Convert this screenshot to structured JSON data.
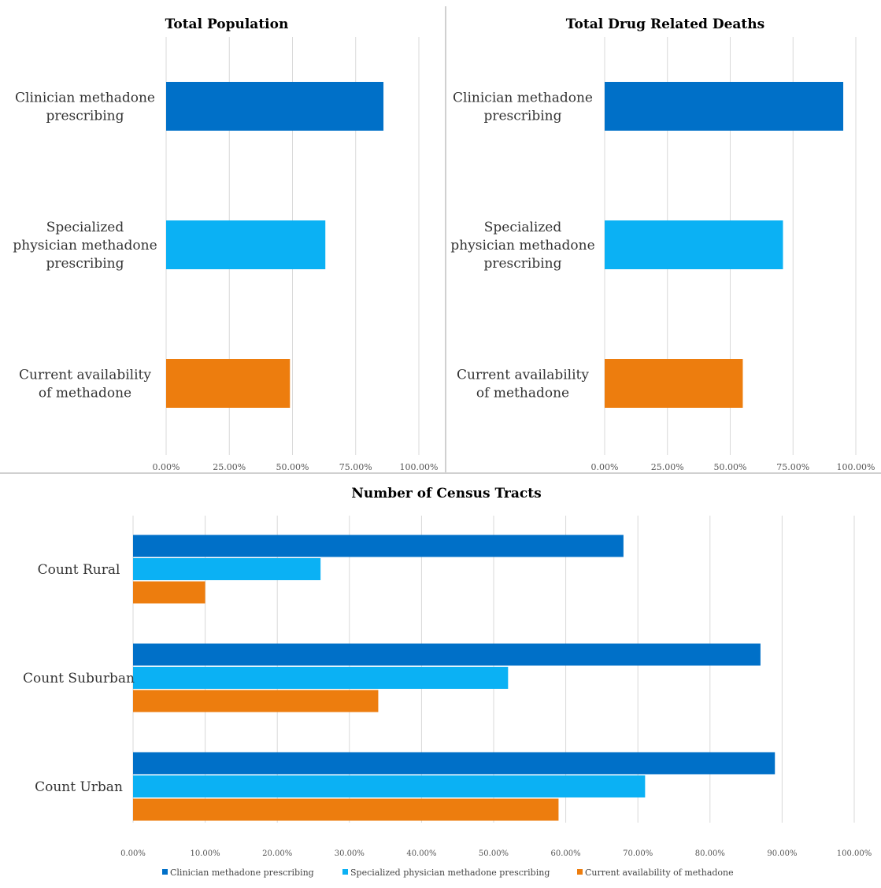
{
  "colors": {
    "clinician": "#0070C8",
    "specialized": "#0BB1F4",
    "current": "#ED7D0E",
    "grid": "#D9D9D9",
    "divider": "#D0D0D0"
  },
  "chart_data": [
    {
      "type": "bar",
      "orientation": "horizontal",
      "title": "Total Population",
      "categories": [
        "Clinician methadone prescribing",
        "Specialized physician methadone prescribing",
        "Current availability of methadone"
      ],
      "values": [
        0.86,
        0.63,
        0.49
      ],
      "xlim": [
        0,
        1
      ],
      "ticks": [
        "0.00%",
        "25.00%",
        "50.00%",
        "75.00%",
        "100.00%"
      ],
      "grid": true
    },
    {
      "type": "bar",
      "orientation": "horizontal",
      "title": "Total Drug Related Deaths",
      "categories": [
        "Clinician methadone prescribing",
        "Specialized physician methadone prescribing",
        "Current availability of methadone"
      ],
      "values": [
        0.95,
        0.71,
        0.55
      ],
      "xlim": [
        0,
        1
      ],
      "ticks": [
        "0.00%",
        "25.00%",
        "50.00%",
        "75.00%",
        "100.00%"
      ],
      "grid": true
    },
    {
      "type": "bar",
      "orientation": "horizontal",
      "title": "Number of Census Tracts",
      "categories": [
        "Count Rural",
        "Count Suburban",
        "Count Urban"
      ],
      "series": [
        {
          "name": "Clinician methadone prescribing",
          "values": [
            0.68,
            0.87,
            0.89
          ]
        },
        {
          "name": "Specialized physician methadone prescribing",
          "values": [
            0.26,
            0.52,
            0.71
          ]
        },
        {
          "name": "Current availability of  methadone",
          "values": [
            0.1,
            0.34,
            0.59
          ]
        }
      ],
      "xlim": [
        0,
        1
      ],
      "ticks": [
        "0.00%",
        "10.00%",
        "20.00%",
        "30.00%",
        "40.00%",
        "50.00%",
        "60.00%",
        "70.00%",
        "80.00%",
        "90.00%",
        "100.00%"
      ],
      "legend": "bottom",
      "grid": true
    }
  ]
}
